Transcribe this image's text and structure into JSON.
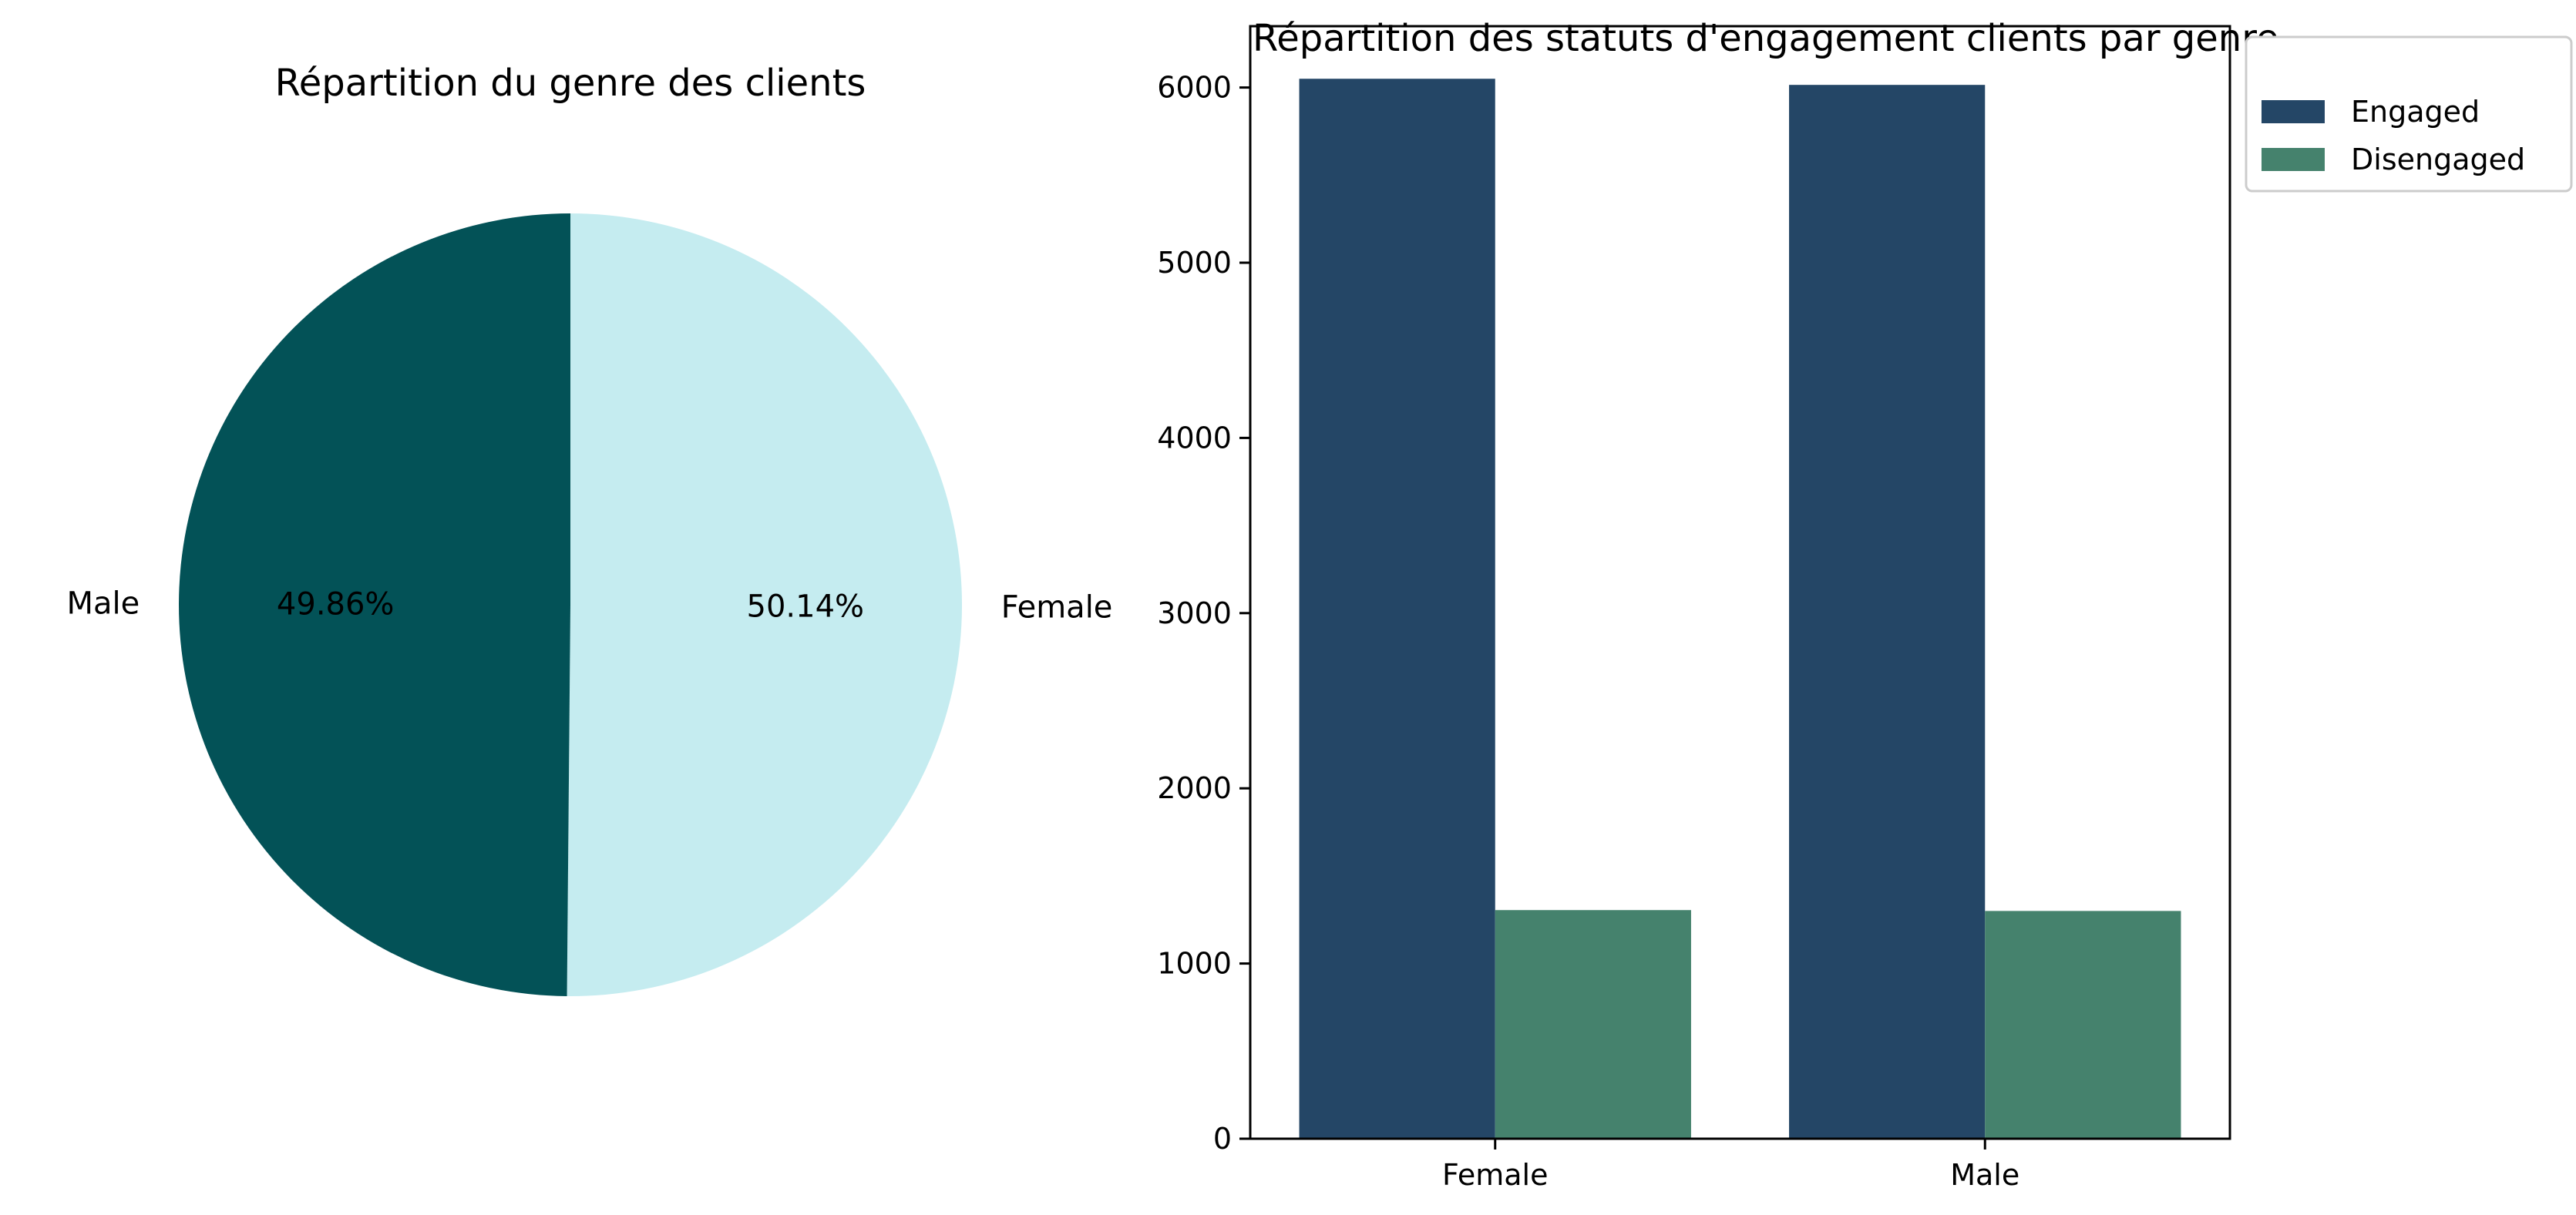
{
  "colors": {
    "female_slice": "#c5ecf0",
    "male_slice": "#035257",
    "engaged": "#244666",
    "disengaged": "#45826d"
  },
  "chart_data": [
    {
      "type": "pie",
      "title": "Répartition du genre des clients",
      "labels": [
        "Female",
        "Male"
      ],
      "values": [
        50.14,
        49.86
      ],
      "pct_labels": [
        "50.14%",
        "49.86%"
      ],
      "colors": [
        "#c5ecf0",
        "#035257"
      ]
    },
    {
      "type": "bar",
      "title": "Répartition des statuts d'engagement clients par genre",
      "categories": [
        "Female",
        "Male"
      ],
      "series": [
        {
          "name": "Engaged",
          "values": [
            6050,
            6015
          ],
          "color": "#244666"
        },
        {
          "name": "Disengaged",
          "values": [
            1305,
            1300
          ],
          "color": "#45826d"
        }
      ],
      "xlabel": "",
      "ylabel": "",
      "ylim": [
        0,
        6350
      ],
      "yticks": [
        0,
        1000,
        2000,
        3000,
        4000,
        5000,
        6000
      ],
      "legend": "outside-top-right",
      "grid": false
    }
  ]
}
